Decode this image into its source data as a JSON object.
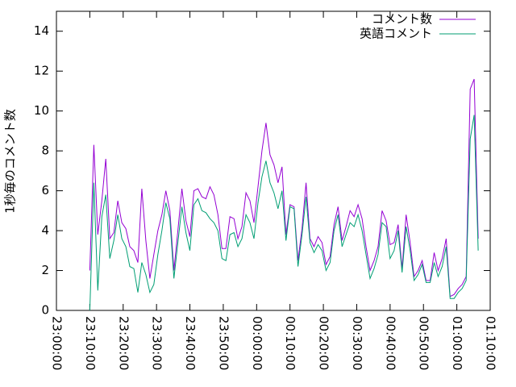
{
  "chart_data": {
    "type": "line",
    "ylabel": "1秒毎のコメント数",
    "xlim": [
      "23:00:00",
      "01:10:00"
    ],
    "xticks": [
      "23:00:00",
      "23:10:00",
      "23:20:00",
      "23:30:00",
      "23:40:00",
      "23:50:00",
      "00:00:00",
      "00:10:00",
      "00:20:00",
      "00:30:00",
      "00:40:00",
      "00:50:00",
      "01:00:00",
      "01:10:00"
    ],
    "ylim": [
      0,
      15
    ],
    "yticks": [
      0,
      2,
      4,
      6,
      8,
      10,
      12,
      14
    ],
    "legend": "top-right",
    "x": [
      "23:10:00",
      "23:11:12",
      "23:12:24",
      "23:13:36",
      "23:14:48",
      "23:16:00",
      "23:17:12",
      "23:18:24",
      "23:19:36",
      "23:20:48",
      "23:22:00",
      "23:23:12",
      "23:24:24",
      "23:25:36",
      "23:26:48",
      "23:28:00",
      "23:29:12",
      "23:30:24",
      "23:31:36",
      "23:32:48",
      "23:34:00",
      "23:35:12",
      "23:36:24",
      "23:37:36",
      "23:38:48",
      "23:40:00",
      "23:41:12",
      "23:42:24",
      "23:43:36",
      "23:44:48",
      "23:46:00",
      "23:47:12",
      "23:48:24",
      "23:49:36",
      "23:50:48",
      "23:52:00",
      "23:53:12",
      "23:54:24",
      "23:55:36",
      "23:56:48",
      "23:58:00",
      "23:59:12",
      "00:00:24",
      "00:01:36",
      "00:02:48",
      "00:04:00",
      "00:05:12",
      "00:06:24",
      "00:07:36",
      "00:08:48",
      "00:10:00",
      "00:11:12",
      "00:12:24",
      "00:13:36",
      "00:14:48",
      "00:16:00",
      "00:17:12",
      "00:18:24",
      "00:19:36",
      "00:20:48",
      "00:22:00",
      "00:23:12",
      "00:24:24",
      "00:25:36",
      "00:26:48",
      "00:28:00",
      "00:29:12",
      "00:30:24",
      "00:31:36",
      "00:32:48",
      "00:34:00",
      "00:35:12",
      "00:36:24",
      "00:37:36",
      "00:38:48",
      "00:40:00",
      "00:41:12",
      "00:42:24",
      "00:43:36",
      "00:44:48",
      "00:46:00",
      "00:47:12",
      "00:48:24",
      "00:49:36",
      "00:50:48",
      "00:52:00",
      "00:53:12",
      "00:54:24",
      "00:55:36",
      "00:56:48",
      "00:58:00",
      "00:59:12",
      "01:00:24",
      "01:01:36",
      "01:02:48",
      "01:04:00",
      "01:05:12",
      "01:06:24"
    ],
    "series": [
      {
        "name": "コメント数",
        "color": "#9400d3",
        "values": [
          2,
          8.3,
          3.8,
          5.5,
          7.6,
          3.6,
          3.9,
          5.5,
          4.4,
          4.1,
          3.2,
          3.0,
          2.4,
          6.1,
          3.5,
          1.6,
          2.8,
          4.0,
          4.8,
          6.0,
          5.0,
          2.0,
          4.0,
          6.1,
          4.5,
          3.7,
          6.0,
          6.1,
          5.7,
          5.6,
          6.2,
          5.8,
          4.8,
          3.1,
          3.1,
          4.7,
          4.6,
          3.6,
          4.2,
          5.9,
          5.5,
          4.4,
          6.2,
          8.0,
          9.4,
          7.8,
          7.3,
          6.4,
          7.2,
          3.8,
          5.3,
          5.2,
          2.5,
          4.1,
          6.4,
          3.6,
          3.2,
          3.7,
          3.4,
          2.3,
          2.7,
          4.3,
          5.2,
          3.5,
          4.2,
          5.0,
          4.7,
          5.3,
          4.6,
          3.2,
          2.0,
          2.5,
          3.2,
          5.0,
          4.5,
          3.3,
          3.4,
          4.3,
          2.1,
          4.8,
          3.4,
          1.7,
          2.0,
          2.5,
          1.5,
          1.5,
          2.9,
          2.0,
          2.6,
          3.6,
          0.7,
          0.8,
          1.1,
          1.3,
          1.7,
          11.1,
          11.6,
          3.6
        ]
      },
      {
        "name": "英語コメント",
        "color": "#009e73",
        "values": [
          0,
          6.4,
          1.0,
          4.7,
          5.8,
          2.6,
          3.5,
          4.8,
          3.6,
          3.2,
          2.2,
          2.1,
          0.9,
          2.4,
          1.8,
          0.9,
          1.3,
          2.8,
          4.0,
          5.4,
          4.6,
          1.6,
          3.4,
          5.2,
          3.9,
          3.0,
          5.3,
          5.6,
          5.0,
          4.9,
          4.6,
          4.4,
          4.0,
          2.6,
          2.5,
          3.8,
          3.9,
          3.2,
          3.6,
          4.8,
          4.4,
          3.6,
          5.4,
          6.7,
          7.5,
          6.4,
          5.9,
          5.1,
          6.0,
          3.5,
          5.2,
          5.1,
          2.2,
          3.8,
          5.7,
          3.4,
          2.9,
          3.3,
          3.0,
          2.0,
          2.4,
          4.0,
          4.8,
          3.2,
          3.8,
          4.4,
          4.2,
          4.8,
          4.0,
          2.8,
          1.6,
          2.1,
          2.8,
          4.4,
          4.2,
          2.6,
          3.0,
          4.0,
          1.9,
          4.2,
          3.0,
          1.5,
          1.8,
          2.3,
          1.4,
          1.4,
          2.4,
          1.7,
          2.2,
          3.2,
          0.6,
          0.6,
          0.9,
          1.1,
          1.5,
          8.6,
          9.8,
          3.0
        ]
      }
    ]
  }
}
